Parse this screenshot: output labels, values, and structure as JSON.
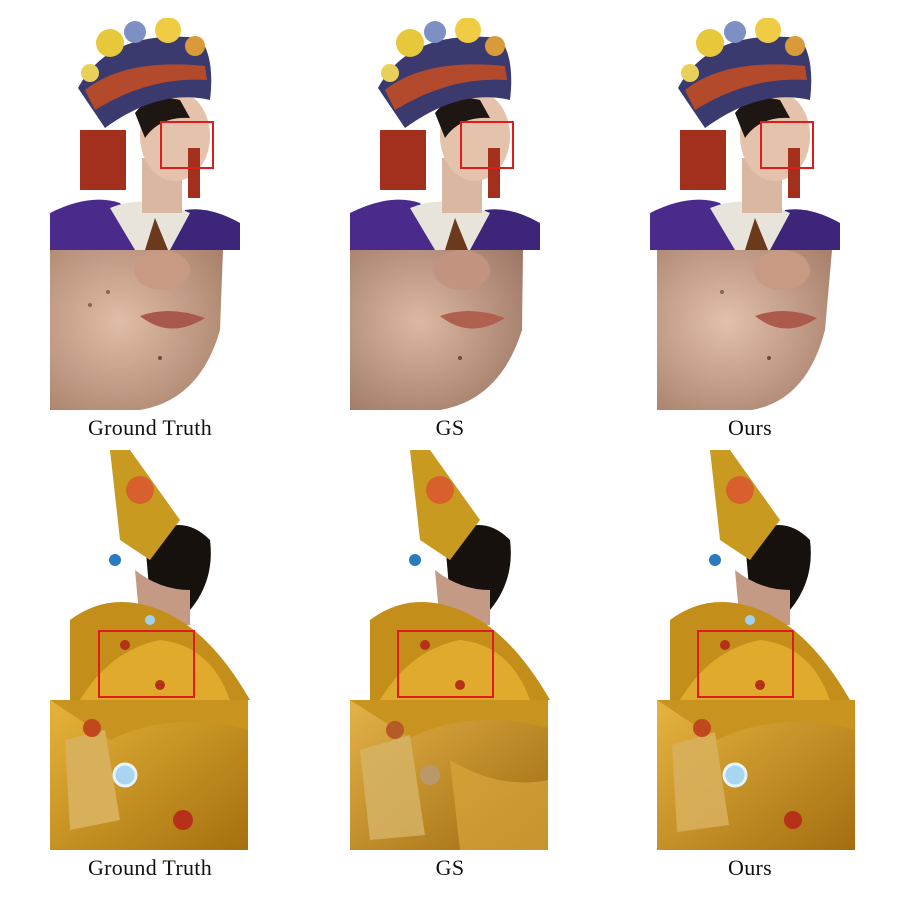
{
  "columns": [
    {
      "label": "Ground Truth"
    },
    {
      "label": "GS"
    },
    {
      "label": "Ours"
    }
  ],
  "rows": [
    {
      "subject": "portrait-headdress",
      "crop_region": "face-lower"
    },
    {
      "subject": "golden-costume",
      "crop_region": "shoulder-gems"
    }
  ],
  "highlight_color": "#e01b1b"
}
